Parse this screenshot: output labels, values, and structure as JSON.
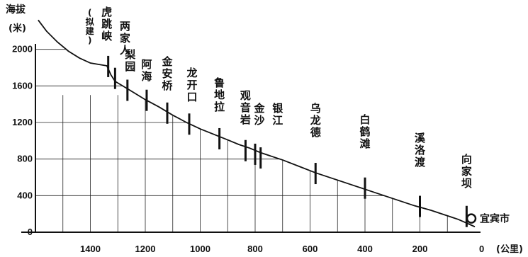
{
  "chart_data": {
    "type": "line",
    "ylabel": "海拔",
    "yunit": "(米)",
    "xunit": "(公里)",
    "x_reversed": true,
    "xlim": [
      1600,
      0
    ],
    "ylim": [
      0,
      2400
    ],
    "y_ticks": [
      "0",
      "400",
      "800",
      "1200",
      "1600",
      "2000"
    ],
    "x_ticks": [
      "1400",
      "1200",
      "1000",
      "800",
      "600",
      "400",
      "200",
      "0"
    ],
    "series": [
      {
        "x": [
          1590,
          1560,
          1520,
          1480,
          1440,
          1400,
          1360,
          1340,
          1325,
          1310,
          1260,
          1200,
          1150,
          1100,
          1050,
          1000,
          950,
          900,
          860,
          820,
          780,
          740,
          700,
          640,
          580,
          520,
          460,
          400,
          340,
          280,
          220,
          160,
          100,
          60,
          30,
          0
        ],
        "y": [
          2320,
          2200,
          2080,
          1980,
          1905,
          1850,
          1830,
          1820,
          1720,
          1650,
          1560,
          1450,
          1370,
          1280,
          1200,
          1130,
          1070,
          1010,
          960,
          920,
          870,
          830,
          790,
          720,
          650,
          590,
          530,
          470,
          410,
          350,
          290,
          240,
          180,
          140,
          100,
          60
        ]
      }
    ],
    "places": [
      {
        "name": "虎跳峡",
        "note": "(拟建)",
        "x": 1335,
        "y": 1820
      },
      {
        "name": "两家人",
        "x": 1310,
        "y": 1690
      },
      {
        "name": "梨园",
        "x": 1265,
        "y": 1560
      },
      {
        "name": "阿海",
        "x": 1195,
        "y": 1450
      },
      {
        "name": "金安桥",
        "x": 1120,
        "y": 1310
      },
      {
        "name": "龙开口",
        "x": 1040,
        "y": 1190
      },
      {
        "name": "鲁地拉",
        "x": 930,
        "y": 1030
      },
      {
        "name": "观音岩",
        "x": 835,
        "y": 900
      },
      {
        "name": "金沙",
        "x": 800,
        "y": 860
      },
      {
        "name": "银江",
        "x": 780,
        "y": 820
      },
      {
        "name": "乌龙德",
        "x": 580,
        "y": 650
      },
      {
        "name": "白鹤滩",
        "x": 400,
        "y": 490
      },
      {
        "name": "溪洛渡",
        "x": 200,
        "y": 290
      },
      {
        "name": "向家坝",
        "x": 30,
        "y": 180
      }
    ],
    "endpoint": {
      "name": "宜宾市",
      "x": 0,
      "y": 150
    }
  }
}
